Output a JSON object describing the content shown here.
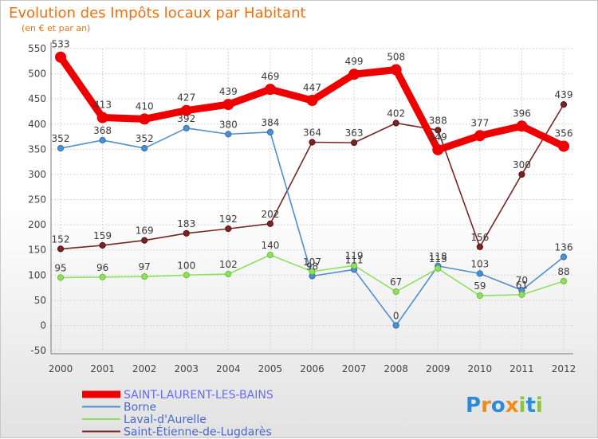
{
  "chart_data": {
    "type": "line",
    "title": "Evolution des Impôts locaux par Habitant",
    "subtitle": "(en € et par an)",
    "x": [
      "2000",
      "2001",
      "2002",
      "2003",
      "2004",
      "2005",
      "2006",
      "2007",
      "2008",
      "2009",
      "2010",
      "2011",
      "2012"
    ],
    "ylim": [
      -50,
      550
    ],
    "yticks": [
      -50,
      0,
      50,
      100,
      150,
      200,
      250,
      300,
      350,
      400,
      450,
      500,
      550
    ],
    "grid": true,
    "legend_position": "bottom-left",
    "series": [
      {
        "name": "SAINT-LAURENT-LES-BAINS",
        "color": "#ee0000",
        "values": [
          533,
          413,
          410,
          427,
          439,
          469,
          447,
          499,
          508,
          349,
          377,
          396,
          356
        ]
      },
      {
        "name": "Borne",
        "color": "#4f8fcf",
        "values": [
          352,
          368,
          352,
          392,
          380,
          384,
          98,
          111,
          0,
          118,
          103,
          70,
          136
        ]
      },
      {
        "name": "Laval-d'Aurelle",
        "color": "#90e060",
        "values": [
          95,
          96,
          97,
          100,
          102,
          140,
          107,
          119,
          67,
          113,
          59,
          61,
          88
        ]
      },
      {
        "name": "Saint-Étienne-de-Lugdarès",
        "color": "#7a2525",
        "values": [
          152,
          159,
          169,
          183,
          192,
          202,
          364,
          363,
          402,
          388,
          156,
          300,
          439
        ]
      }
    ]
  },
  "logo": {
    "text": "Proxiti",
    "letters": [
      "P",
      "r",
      "o",
      "x",
      "i",
      "t",
      "i"
    ],
    "colors": [
      "#2e8bd8",
      "#f28a1a",
      "#2e8bd8",
      "#f28a1a",
      "#8ac43f",
      "#2e8bd8",
      "#8ac43f"
    ]
  }
}
